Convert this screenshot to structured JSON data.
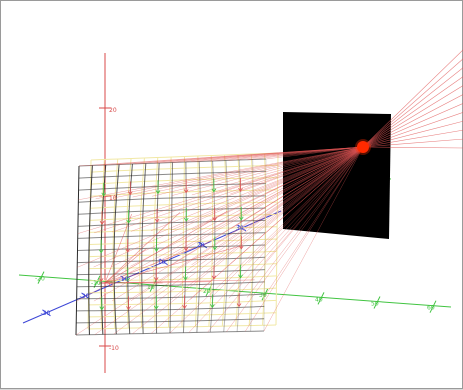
{
  "scene": {
    "background": "#ffffff",
    "colors": {
      "axis_red": "#d84a4a",
      "axis_green": "#41c441",
      "axis_blue": "#3c46d6",
      "rays": "#e05555",
      "grid_dark": "#2a2a2a",
      "grid_light": "#f1e8a6",
      "panel": "#000000",
      "source": "#ff2a00"
    },
    "axes": {
      "vertical_ticks": [
        "20",
        "10",
        "0",
        "-10"
      ],
      "horizontal_ticks": [
        "-20",
        "-10",
        "10",
        "20",
        "30",
        "40",
        "50",
        "60"
      ],
      "depth_ticks": [
        "-30",
        "-20",
        "-10",
        "10",
        "20",
        "30"
      ]
    },
    "elements": {
      "grid": "curved-grid-surface",
      "panel": "black-panel",
      "source": "red-point-source",
      "rays": "light-rays"
    }
  }
}
